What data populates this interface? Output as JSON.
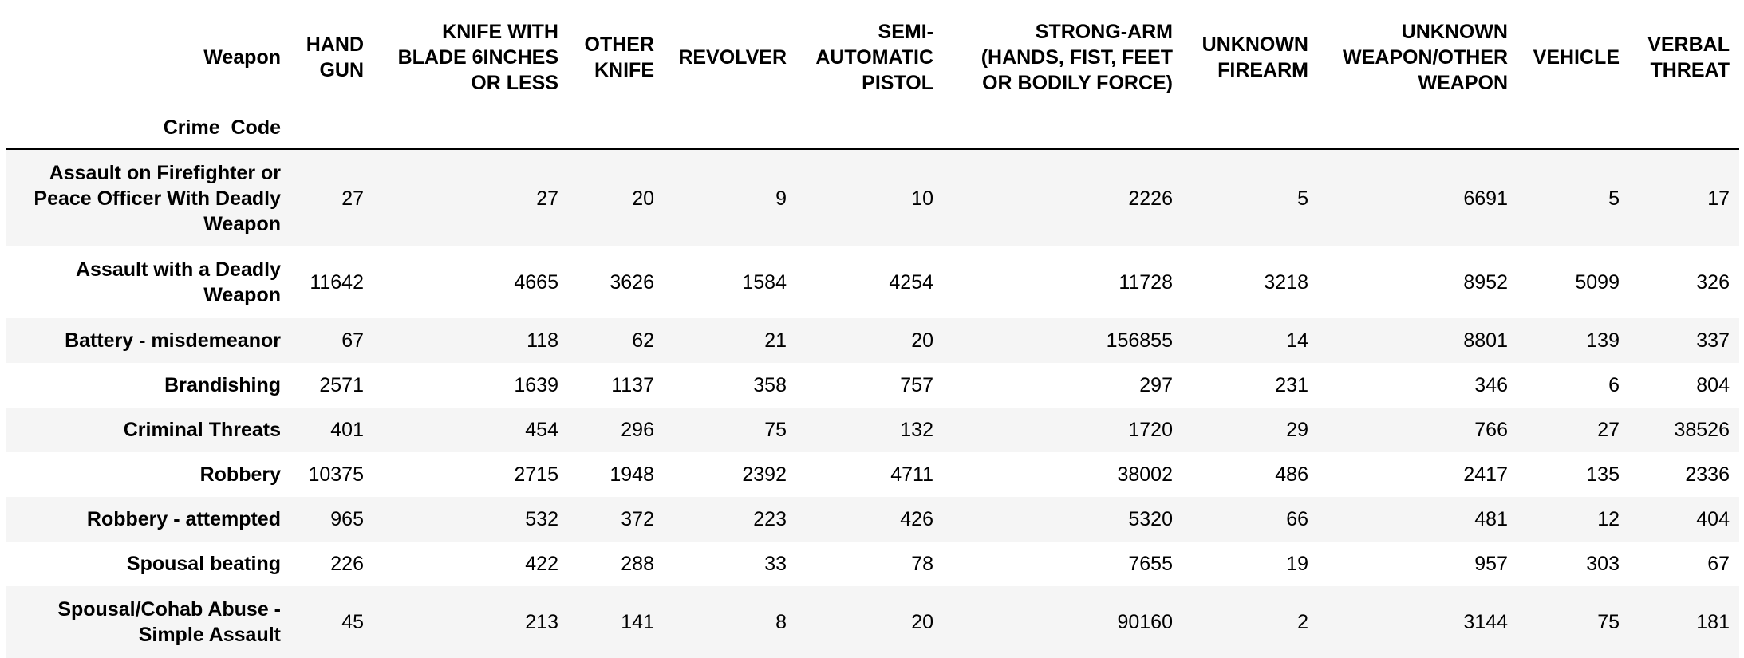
{
  "table": {
    "column_index_name": "Weapon",
    "row_index_name": "Crime_Code",
    "columns": [
      "HAND GUN",
      "KNIFE WITH BLADE 6INCHES OR LESS",
      "OTHER KNIFE",
      "REVOLVER",
      "SEMI-AUTOMATIC PISTOL",
      "STRONG-ARM (HANDS, FIST, FEET OR BODILY FORCE)",
      "UNKNOWN FIREARM",
      "UNKNOWN WEAPON/OTHER WEAPON",
      "VEHICLE",
      "VERBAL THREAT"
    ],
    "rows": [
      {
        "label": "Assault on Firefighter or Peace Officer With Deadly Weapon",
        "values": [
          "27",
          "27",
          "20",
          "9",
          "10",
          "2226",
          "5",
          "6691",
          "5",
          "17"
        ]
      },
      {
        "label": "Assault with a Deadly Weapon",
        "values": [
          "11642",
          "4665",
          "3626",
          "1584",
          "4254",
          "11728",
          "3218",
          "8952",
          "5099",
          "326"
        ]
      },
      {
        "label": "Battery - misdemeanor",
        "values": [
          "67",
          "118",
          "62",
          "21",
          "20",
          "156855",
          "14",
          "8801",
          "139",
          "337"
        ]
      },
      {
        "label": "Brandishing",
        "values": [
          "2571",
          "1639",
          "1137",
          "358",
          "757",
          "297",
          "231",
          "346",
          "6",
          "804"
        ]
      },
      {
        "label": "Criminal Threats",
        "values": [
          "401",
          "454",
          "296",
          "75",
          "132",
          "1720",
          "29",
          "766",
          "27",
          "38526"
        ]
      },
      {
        "label": "Robbery",
        "values": [
          "10375",
          "2715",
          "1948",
          "2392",
          "4711",
          "38002",
          "486",
          "2417",
          "135",
          "2336"
        ]
      },
      {
        "label": "Robbery - attempted",
        "values": [
          "965",
          "532",
          "372",
          "223",
          "426",
          "5320",
          "66",
          "481",
          "12",
          "404"
        ]
      },
      {
        "label": "Spousal beating",
        "values": [
          "226",
          "422",
          "288",
          "33",
          "78",
          "7655",
          "19",
          "957",
          "303",
          "67"
        ]
      },
      {
        "label": "Spousal/Cohab Abuse - Simple Assault",
        "values": [
          "45",
          "213",
          "141",
          "8",
          "20",
          "90160",
          "2",
          "3144",
          "75",
          "181"
        ]
      }
    ]
  }
}
